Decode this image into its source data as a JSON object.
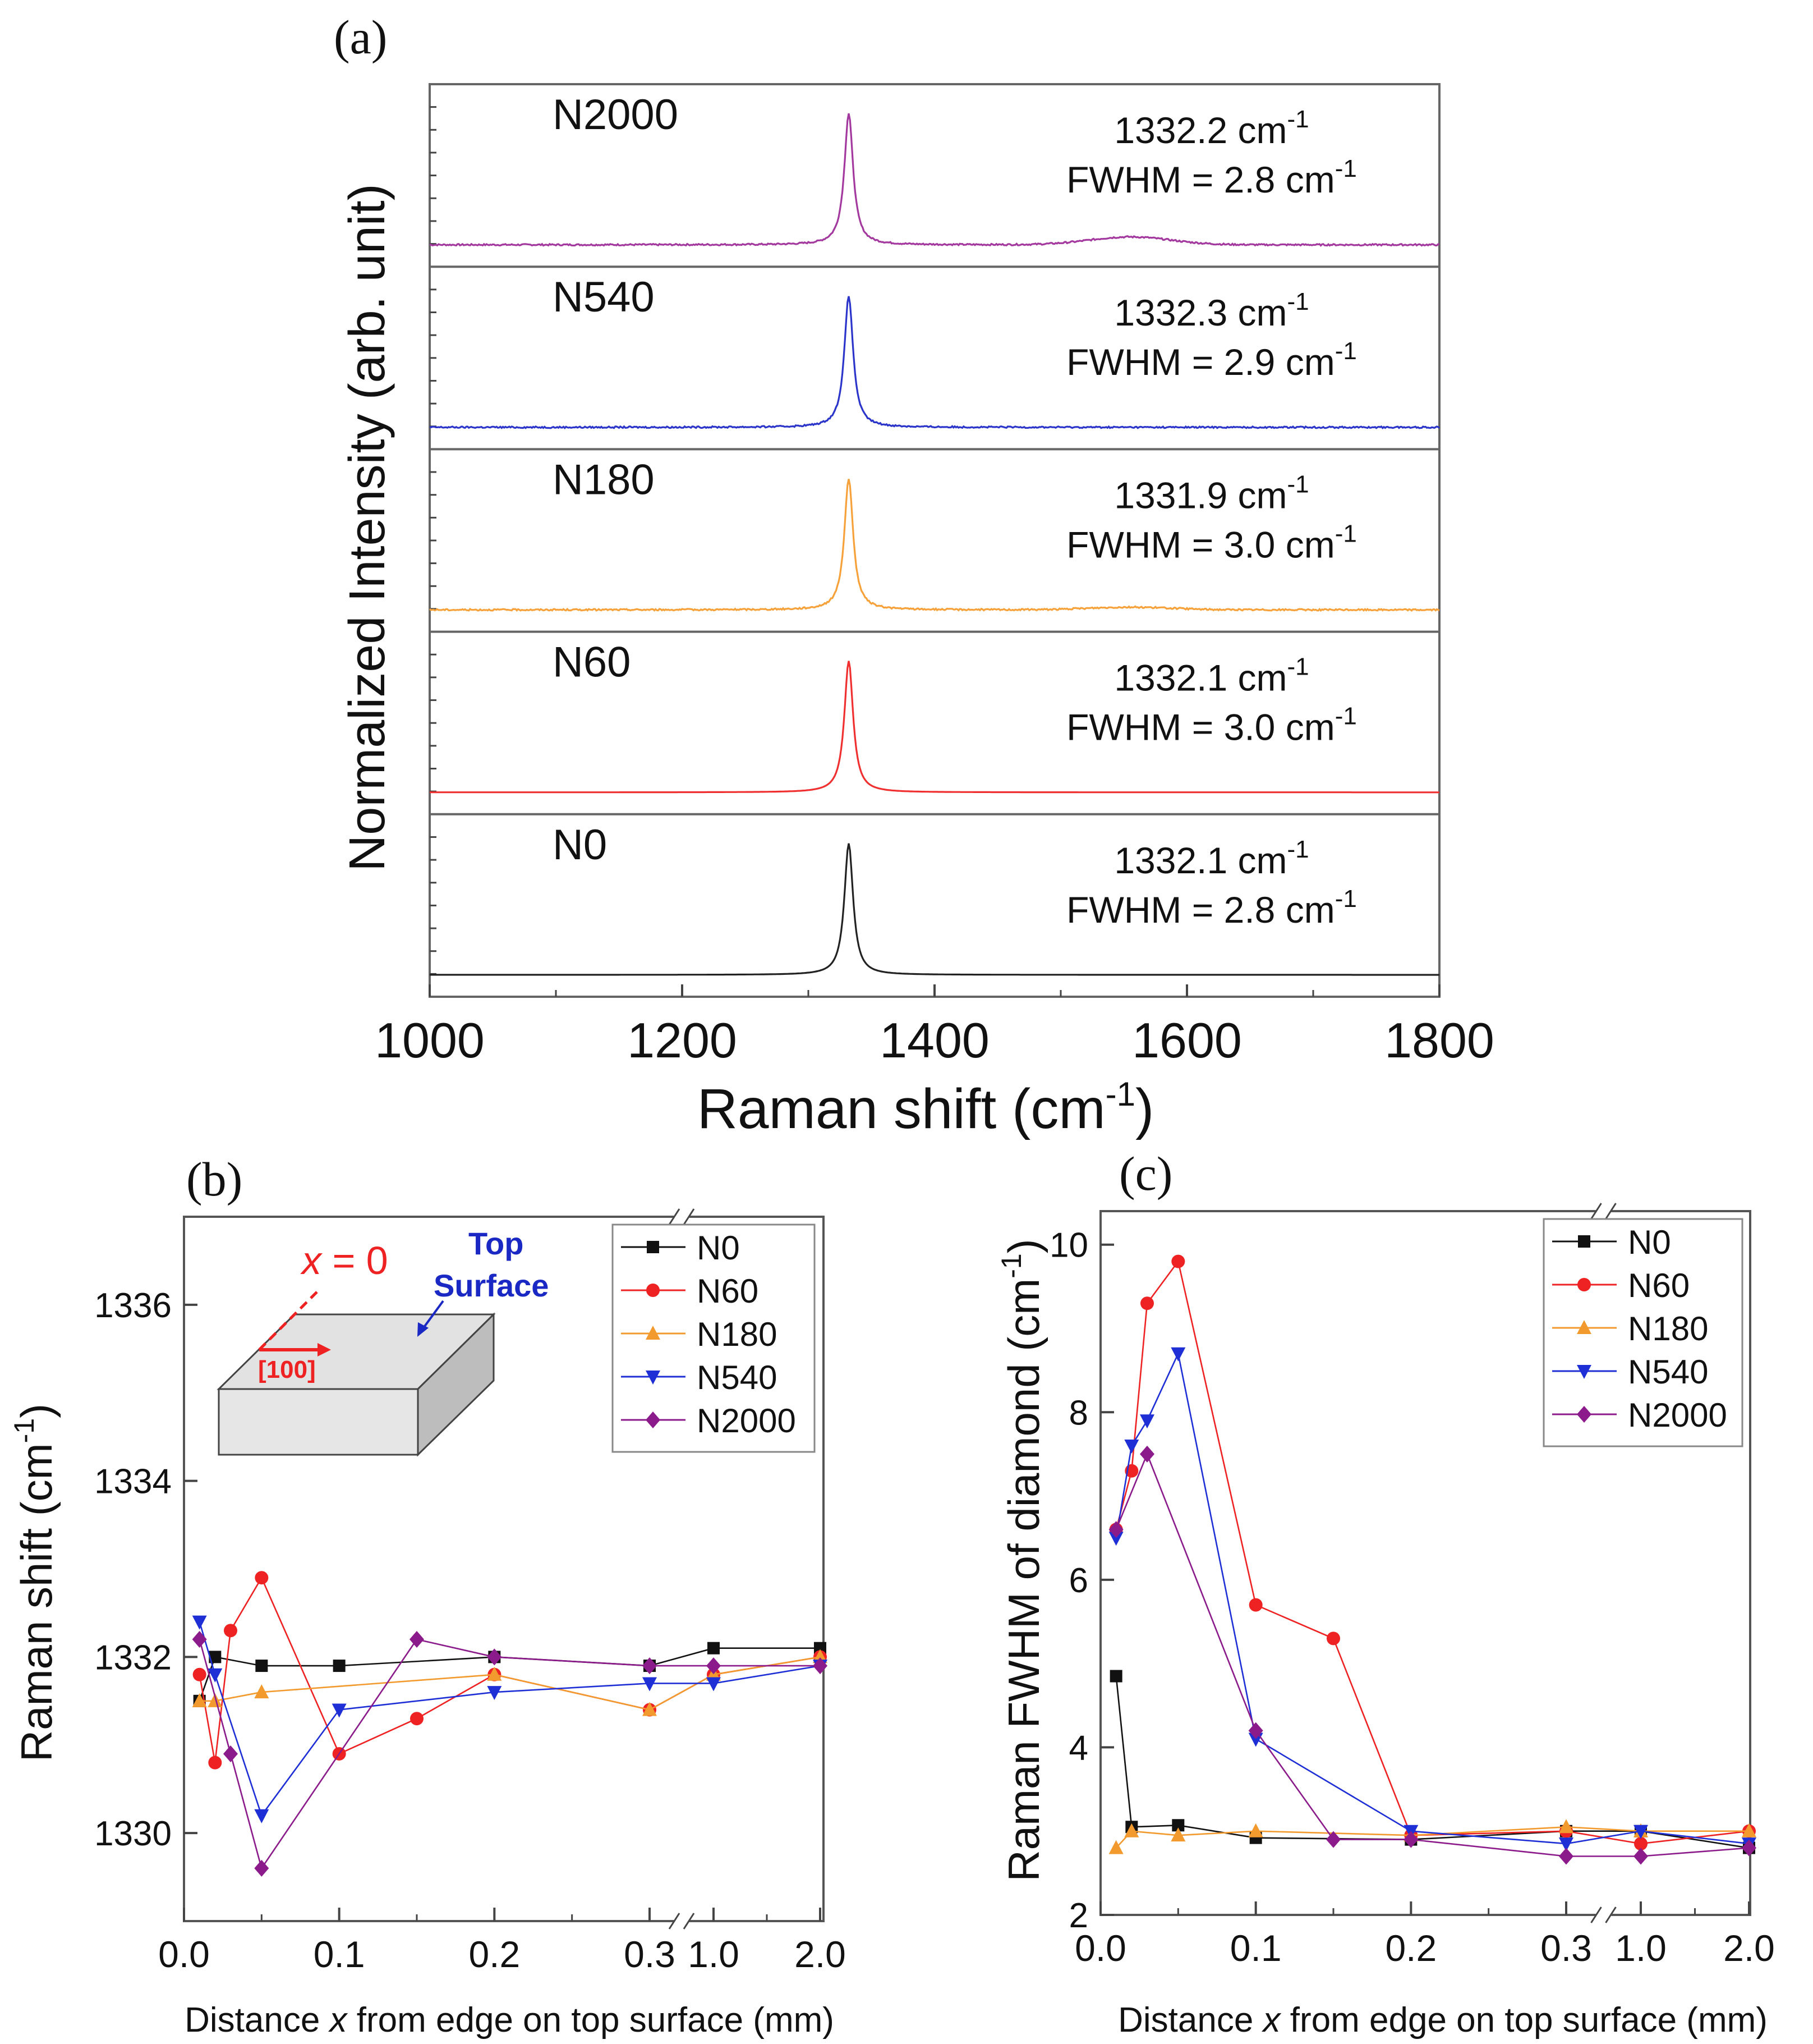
{
  "figure": {
    "panels": {
      "a": {
        "label": "(a)"
      },
      "b": {
        "label": "(b)"
      },
      "c": {
        "label": "(c)"
      }
    }
  },
  "chart_data": [
    {
      "id": "a",
      "type": "line",
      "title": "",
      "xlabel": "Raman shift (cm",
      "xlabel_sup": "-1",
      "xlabel_end": ")",
      "ylabel": "Normalized Intensity (arb. unit)",
      "xlim": [
        1000,
        1800
      ],
      "xticks": [
        1000,
        1200,
        1400,
        1600,
        1800
      ],
      "peak_position": 1332,
      "series": [
        {
          "name": "N2000",
          "color": "#a3389e",
          "peak": "1332.2 cm",
          "fwhm": "FWHM = 2.8 cm",
          "bump": 0.06
        },
        {
          "name": "N540",
          "color": "#2b35c9",
          "peak": "1332.3 cm",
          "fwhm": "FWHM = 2.9 cm",
          "bump": 0.0
        },
        {
          "name": "N180",
          "color": "#f7a13a",
          "peak": "1331.9 cm",
          "fwhm": "FWHM = 3.0 cm",
          "bump": 0.02
        },
        {
          "name": "N60",
          "color": "#f03030",
          "peak": "1332.1 cm",
          "fwhm": "FWHM = 3.0 cm",
          "bump": 0.0
        },
        {
          "name": "N0",
          "color": "#222222",
          "peak": "1332.1 cm",
          "fwhm": "FWHM = 2.8 cm",
          "bump": 0.0
        }
      ],
      "unit_sup": "-1"
    },
    {
      "id": "b",
      "type": "line",
      "xlabel_pre": "Distance ",
      "xlabel_var": "x",
      "xlabel_post": " from edge on top surface (mm)",
      "ylabel": "Raman shift (cm",
      "ylabel_sup": "-1",
      "ylabel_end": ")",
      "ylim": [
        1329,
        1337
      ],
      "yticks": [
        1330,
        1332,
        1334,
        1336
      ],
      "xticks": [
        "0.0",
        "0.1",
        "0.2",
        "0.3",
        "1.0",
        "2.0"
      ],
      "x": [
        0.01,
        0.02,
        0.03,
        0.05,
        0.1,
        0.15,
        0.2,
        0.3,
        1.0,
        2.0
      ],
      "series": [
        {
          "name": "N0",
          "color": "#111111",
          "marker": "square",
          "x": [
            0.01,
            0.02,
            0.05,
            0.1,
            0.2,
            0.3,
            1.0,
            2.0
          ],
          "values": [
            1331.5,
            1332.0,
            1331.9,
            1331.9,
            1332.0,
            1331.9,
            1332.1,
            1332.1
          ]
        },
        {
          "name": "N60",
          "color": "#ee2222",
          "marker": "circle",
          "x": [
            0.01,
            0.02,
            0.03,
            0.05,
            0.1,
            0.15,
            0.2,
            0.3,
            1.0,
            2.0
          ],
          "values": [
            1331.8,
            1330.8,
            1332.3,
            1332.9,
            1330.9,
            1331.3,
            1331.8,
            1331.4,
            1331.8,
            1332.0
          ]
        },
        {
          "name": "N180",
          "color": "#f29a2e",
          "marker": "triangle-up",
          "x": [
            0.01,
            0.02,
            0.05,
            0.2,
            0.3,
            1.0,
            2.0
          ],
          "values": [
            1331.5,
            1331.5,
            1331.6,
            1331.8,
            1331.4,
            1331.8,
            1332.0
          ]
        },
        {
          "name": "N540",
          "color": "#1f2fd6",
          "marker": "triangle-down",
          "x": [
            0.01,
            0.02,
            0.05,
            0.1,
            0.2,
            0.3,
            1.0,
            2.0
          ],
          "values": [
            1332.4,
            1331.8,
            1330.2,
            1331.4,
            1331.6,
            1331.7,
            1331.7,
            1331.9
          ]
        },
        {
          "name": "N2000",
          "color": "#8b1a8b",
          "marker": "diamond",
          "x": [
            0.01,
            0.03,
            0.05,
            0.15,
            0.2,
            0.3,
            1.0,
            2.0
          ],
          "values": [
            1332.2,
            1330.9,
            1329.6,
            1332.2,
            1332.0,
            1331.9,
            1331.9,
            1331.9
          ]
        }
      ],
      "inset": {
        "x_label": "x",
        "x_eq": " = 0",
        "direction": "[100]",
        "top": "Top",
        "surface": "Surface"
      },
      "legend": "top-right"
    },
    {
      "id": "c",
      "type": "line",
      "xlabel_pre": "Distance ",
      "xlabel_var": "x",
      "xlabel_post": " from edge on top surface (mm)",
      "ylabel": "Raman FWHM of diamond (cm",
      "ylabel_sup": "-1",
      "ylabel_end": ")",
      "ylim": [
        2,
        10.4
      ],
      "yticks": [
        2,
        4,
        6,
        8,
        10
      ],
      "xticks": [
        "0.0",
        "0.1",
        "0.2",
        "0.3",
        "1.0",
        "2.0"
      ],
      "series": [
        {
          "name": "N0",
          "color": "#111111",
          "marker": "square",
          "x": [
            0.01,
            0.02,
            0.05,
            0.1,
            0.2,
            0.3,
            1.0,
            2.0
          ],
          "values": [
            4.85,
            3.05,
            3.07,
            2.92,
            2.9,
            3.0,
            3.0,
            2.8
          ]
        },
        {
          "name": "N60",
          "color": "#ee2222",
          "marker": "circle",
          "x": [
            0.01,
            0.02,
            0.03,
            0.05,
            0.1,
            0.15,
            0.2,
            0.3,
            1.0,
            2.0
          ],
          "values": [
            6.6,
            7.3,
            9.3,
            9.8,
            5.7,
            5.3,
            2.95,
            3.0,
            2.85,
            3.0
          ]
        },
        {
          "name": "N180",
          "color": "#f29a2e",
          "marker": "triangle-up",
          "x": [
            0.01,
            0.02,
            0.05,
            0.1,
            0.2,
            0.3,
            1.0,
            2.0
          ],
          "values": [
            2.8,
            3.0,
            2.95,
            3.0,
            2.95,
            3.05,
            3.0,
            3.0
          ]
        },
        {
          "name": "N540",
          "color": "#1f2fd6",
          "marker": "triangle-down",
          "x": [
            0.01,
            0.02,
            0.03,
            0.05,
            0.1,
            0.2,
            0.3,
            1.0,
            2.0
          ],
          "values": [
            6.5,
            7.6,
            7.9,
            8.7,
            4.1,
            3.0,
            2.85,
            3.0,
            2.85
          ]
        },
        {
          "name": "N2000",
          "color": "#8b1a8b",
          "marker": "diamond",
          "x": [
            0.01,
            0.03,
            0.1,
            0.15,
            0.2,
            0.3,
            1.0,
            2.0
          ],
          "values": [
            6.6,
            7.5,
            4.2,
            2.9,
            2.9,
            2.7,
            2.7,
            2.8
          ]
        }
      ],
      "legend": "top-right"
    }
  ]
}
